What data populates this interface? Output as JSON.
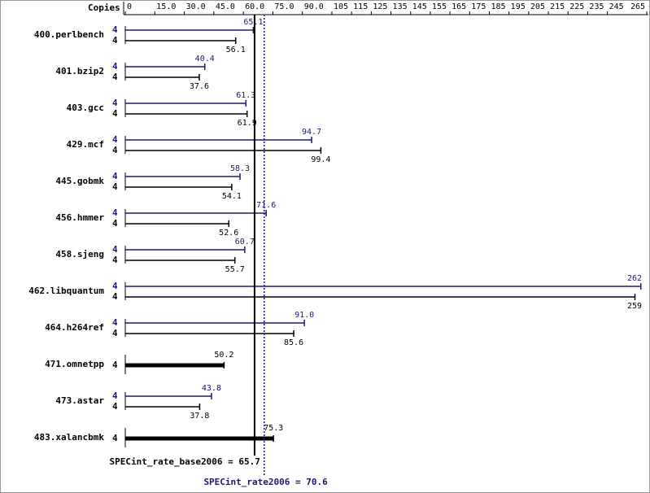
{
  "chart_data": {
    "type": "bar",
    "orientation": "horizontal",
    "copies_label": "Copies",
    "categories": [
      "400.perlbench",
      "401.bzip2",
      "403.gcc",
      "429.mcf",
      "445.gobmk",
      "456.hmmer",
      "458.sjeng",
      "462.libquantum",
      "464.h264ref",
      "471.omnetpp",
      "473.astar",
      "483.xalancbmk"
    ],
    "series": [
      {
        "color": "#191970",
        "values": [
          65.1,
          40.4,
          61.3,
          94.7,
          58.3,
          71.6,
          60.7,
          262,
          91.0,
          null,
          43.8,
          null
        ],
        "value_labels": [
          "65.1",
          "40.4",
          "61.3",
          "94.7",
          "58.3",
          "71.6",
          "60.7",
          "262",
          "91.0",
          null,
          "43.8",
          null
        ],
        "copies": [
          4,
          4,
          4,
          4,
          4,
          4,
          4,
          4,
          4,
          null,
          4,
          null
        ]
      },
      {
        "color": "#000000",
        "values": [
          56.1,
          37.6,
          61.9,
          99.4,
          54.1,
          52.6,
          55.7,
          259,
          85.6,
          50.2,
          37.8,
          75.3
        ],
        "value_labels": [
          "56.1",
          "37.6",
          "61.9",
          "99.4",
          "54.1",
          "52.6",
          "55.7",
          "259",
          "85.6",
          "50.2",
          "37.8",
          "75.3"
        ],
        "copies": [
          4,
          4,
          4,
          4,
          4,
          4,
          4,
          4,
          4,
          4,
          4,
          4
        ]
      }
    ],
    "xlim": [
      0,
      265
    ],
    "xticks": [
      0,
      {
        "value": 15,
        "label": "15.0"
      },
      {
        "value": 30,
        "label": "30.0"
      },
      {
        "value": 45,
        "label": "45.0"
      },
      {
        "value": 60,
        "label": "60.0"
      },
      {
        "value": 75,
        "label": "75.0"
      },
      {
        "value": 90,
        "label": "90.0"
      },
      105,
      115,
      125,
      135,
      145,
      155,
      165,
      175,
      185,
      195,
      205,
      215,
      225,
      235,
      245,
      265
    ],
    "reference_lines": [
      {
        "label": "SPECint_rate_base2006 = 65.7",
        "value": 65.7,
        "color": "#000000",
        "dashed": false
      },
      {
        "label": "SPECint_rate2006 = 70.6",
        "value": 70.6,
        "color": "#191970",
        "dashed": true
      }
    ]
  }
}
